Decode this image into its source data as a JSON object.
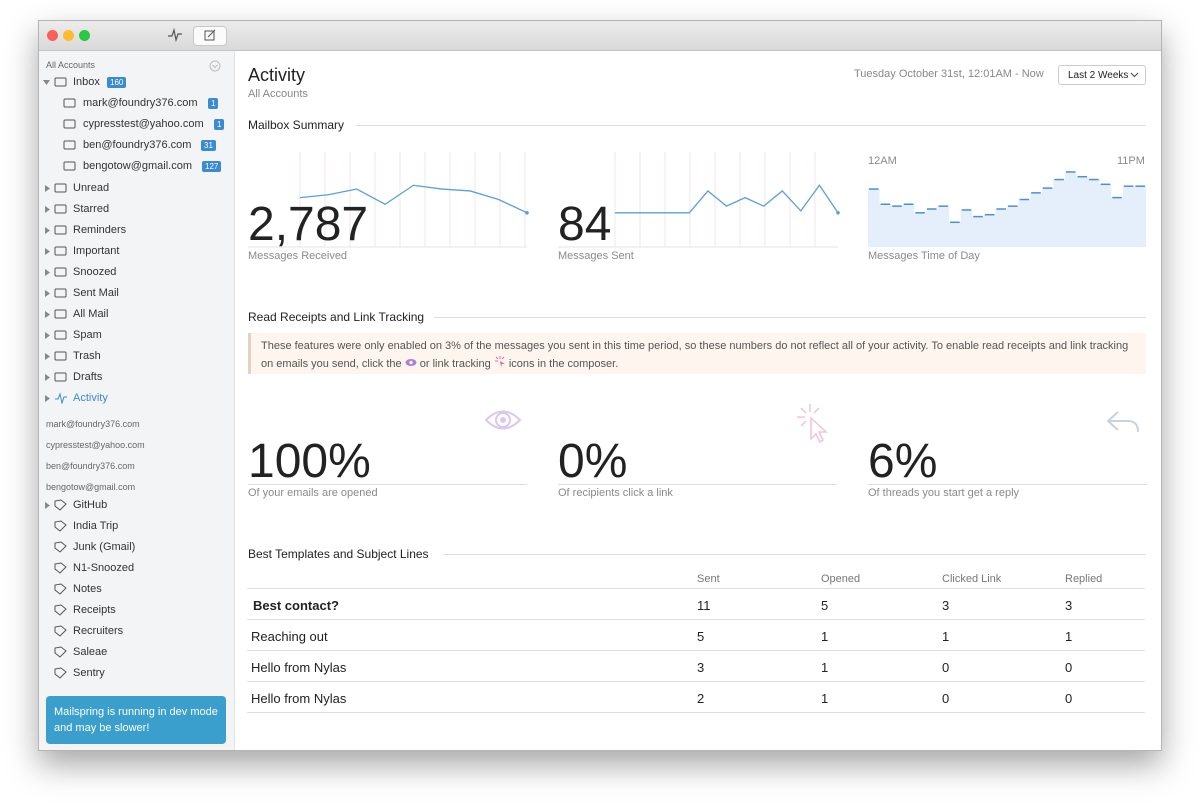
{
  "sidebar": {
    "all_accounts": "All Accounts",
    "inbox": {
      "label": "Inbox",
      "count": 160
    },
    "accounts": [
      {
        "label": "mark@foundry376.com",
        "count": 1
      },
      {
        "label": "cypresstest@yahoo.com",
        "count": 1
      },
      {
        "label": "ben@foundry376.com",
        "count": 31
      },
      {
        "label": "bengotow@gmail.com",
        "count": 127
      }
    ],
    "folders": [
      "Unread",
      "Starred",
      "Reminders",
      "Important",
      "Snoozed",
      "Sent Mail",
      "All Mail",
      "Spam",
      "Trash",
      "Drafts",
      "Activity"
    ],
    "account_headers": [
      "mark@foundry376.com",
      "cypresstest@yahoo.com",
      "ben@foundry376.com",
      "bengotow@gmail.com"
    ],
    "labels": [
      "GitHub",
      "India Trip",
      "Junk (Gmail)",
      "N1-Snoozed",
      "Notes",
      "Receipts",
      "Recruiters",
      "Saleae",
      "Sentry"
    ],
    "dev_notice": "Mailspring is running in dev mode and may be slower!"
  },
  "header": {
    "title": "Activity",
    "subtitle": "All Accounts",
    "date_range": "Tuesday October 31st, 12:01AM - Now",
    "period_button": "Last 2 Weeks"
  },
  "mailbox_summary": {
    "title": "Mailbox Summary",
    "received": {
      "value": "2,787",
      "label": "Messages Received",
      "trend": [
        52,
        55,
        61,
        45,
        65,
        61,
        59,
        50,
        36
      ]
    },
    "sent": {
      "value": "84",
      "label": "Messages Sent",
      "trend": [
        36,
        36,
        36,
        36,
        36,
        59,
        43,
        52,
        43,
        59,
        38,
        65,
        36
      ]
    },
    "time_of_day": {
      "label": "Messages Time of Day",
      "start": "12AM",
      "end": "11PM",
      "trend": [
        61,
        45,
        43,
        45,
        36,
        40,
        43,
        26,
        39,
        32,
        34,
        40,
        43,
        50,
        57,
        62,
        71,
        79,
        74,
        71,
        66,
        52,
        64,
        64
      ]
    }
  },
  "tracking": {
    "title": "Read Receipts and Link Tracking",
    "notice": [
      "These features were only enabled on 3% of the messages you sent in this time period, so these numbers do not reflect all of your activity. To enable read receipts and link tracking on emails you send, click the",
      "or link tracking",
      "icons in the composer."
    ],
    "stats": [
      {
        "value": "100%",
        "label": "Of your emails are opened"
      },
      {
        "value": "0%",
        "label": "Of recipients click a link"
      },
      {
        "value": "6%",
        "label": "Of threads you start get a reply"
      }
    ]
  },
  "templates": {
    "title": "Best Templates and Subject Lines",
    "columns": [
      "Sent",
      "Opened",
      "Clicked Link",
      "Replied"
    ],
    "rows": [
      [
        "Best contact?",
        11,
        5,
        3,
        3
      ],
      [
        "Reaching out",
        5,
        1,
        1,
        1
      ],
      [
        "Hello from Nylas",
        3,
        1,
        0,
        0
      ],
      [
        "Hello from Nylas",
        2,
        1,
        0,
        0
      ]
    ]
  }
}
